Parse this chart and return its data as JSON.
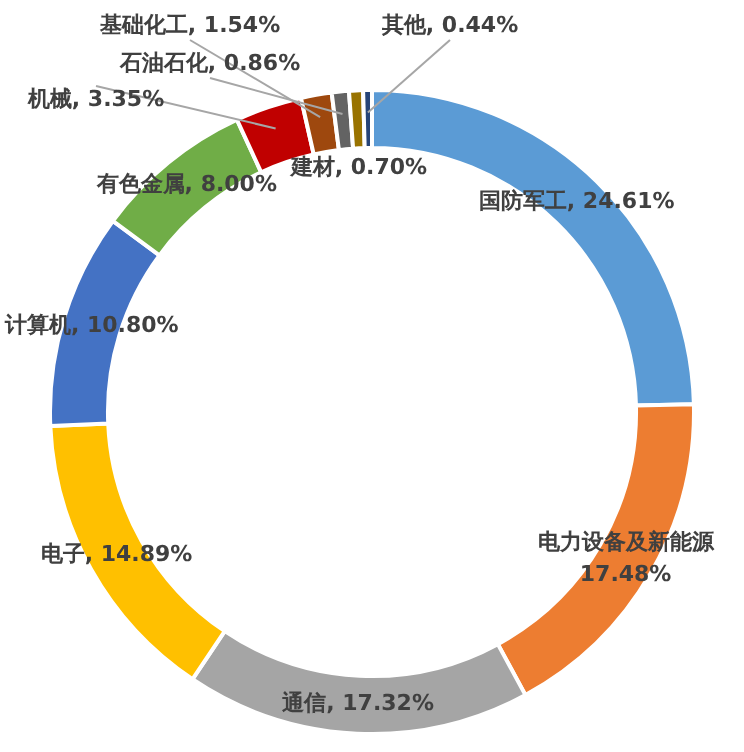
{
  "chart_data": {
    "type": "donut",
    "categories": [
      "国防军工",
      "电力设备及新能源",
      "通信",
      "电子",
      "计算机",
      "有色金属",
      "机械",
      "基础化工",
      "石油石化",
      "建材",
      "其他"
    ],
    "values": [
      24.61,
      17.48,
      17.32,
      14.89,
      10.8,
      8.0,
      3.35,
      1.54,
      0.86,
      0.7,
      0.44
    ],
    "value_labels": [
      "24.61%",
      "17.48%",
      "17.32%",
      "14.89%",
      "10.80%",
      "8.00%",
      "3.35%",
      "1.54%",
      "0.86%",
      "0.70%",
      "0.44%"
    ],
    "colors": [
      "#5b9bd5",
      "#ed7d31",
      "#a5a5a5",
      "#ffc000",
      "#4472c4",
      "#70ad47",
      "#c00000",
      "#9e480e",
      "#636363",
      "#997300",
      "#264478"
    ],
    "legend": false
  }
}
